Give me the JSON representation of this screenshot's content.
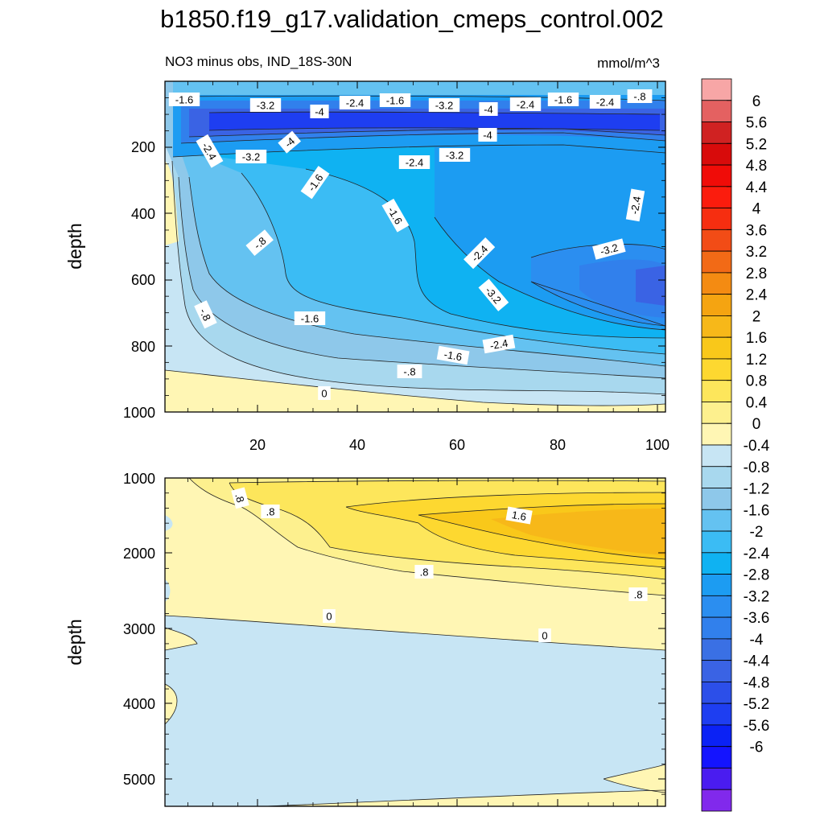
{
  "chart_data": {
    "type": "contour",
    "title": "b1850.f19_g17.validation_cmeps_control.002",
    "subtitle_left": "NO3 minus obs, IND_18S-30N",
    "units": "mmol/m^3",
    "colors": {
      "neg": [
        "#c7e5f4",
        "#a8d8ee",
        "#8ec8ea",
        "#64c2f1",
        "#3bbcf4",
        "#0fb2f2",
        "#1c9cf2",
        "#2b8ef0",
        "#3180ec",
        "#3a70e4",
        "#3a63e4",
        "#2c4fe9",
        "#1e3ef1",
        "#0b22f5",
        "#1414ff",
        "#4a1cf0",
        "#8129ec"
      ],
      "pos": [
        "#fff6b4",
        "#fdf08e",
        "#fde65b",
        "#fdd830",
        "#f9c81a",
        "#f7b819",
        "#f5a411",
        "#f48b12",
        "#f26a16",
        "#f24c16",
        "#f62e10",
        "#fb1c0d",
        "#f00c08",
        "#d80b0b",
        "#d02222",
        "#e46161",
        "#f7a6a6"
      ],
      "line": "#222222"
    },
    "colorbar": {
      "labels": [
        "6",
        "5.6",
        "5.2",
        "4.8",
        "4.4",
        "4",
        "3.6",
        "3.2",
        "2.8",
        "2.4",
        "2",
        "1.6",
        "1.2",
        "0.8",
        "0.4",
        "0",
        "-0.4",
        "-0.8",
        "-1.2",
        "-1.6",
        "-2",
        "-2.4",
        "-2.8",
        "-3.2",
        "-3.6",
        "-4",
        "-4.4",
        "-4.8",
        "-5.2",
        "-5.6",
        "-6"
      ]
    },
    "panels": [
      {
        "ylabel": "depth",
        "xlim": [
          1,
          100
        ],
        "ylim": [
          1000,
          0
        ],
        "xticks": [
          "20",
          "40",
          "60",
          "80",
          "100"
        ],
        "yticks": [
          "200",
          "400",
          "600",
          "800",
          "1000"
        ],
        "contour_labels": [
          "-1.6",
          "-3.2",
          "-4",
          "-2.4",
          "-1.6",
          "-3.2",
          "-4",
          "-2.4",
          "-1.6",
          "-2.4",
          "-.8",
          "-2.4",
          "-4",
          "-3.2",
          "-4",
          "-2.4",
          "-3.2",
          "-1.6",
          "-1.6",
          "-2.4",
          "-.8",
          "-2.4",
          "-3.2",
          "-3.2",
          "-.8",
          "-1.6",
          "-2.4",
          "-1.6",
          "-.8",
          "0"
        ]
      },
      {
        "ylabel": "depth",
        "xlim": [
          1,
          100
        ],
        "ylim": [
          5300,
          1000
        ],
        "yticks": [
          "1000",
          "2000",
          "3000",
          "4000",
          "5000"
        ],
        "contour_labels": [
          ".8",
          ".8",
          "1.6",
          ".8",
          ".8",
          "0",
          "0"
        ]
      }
    ]
  }
}
